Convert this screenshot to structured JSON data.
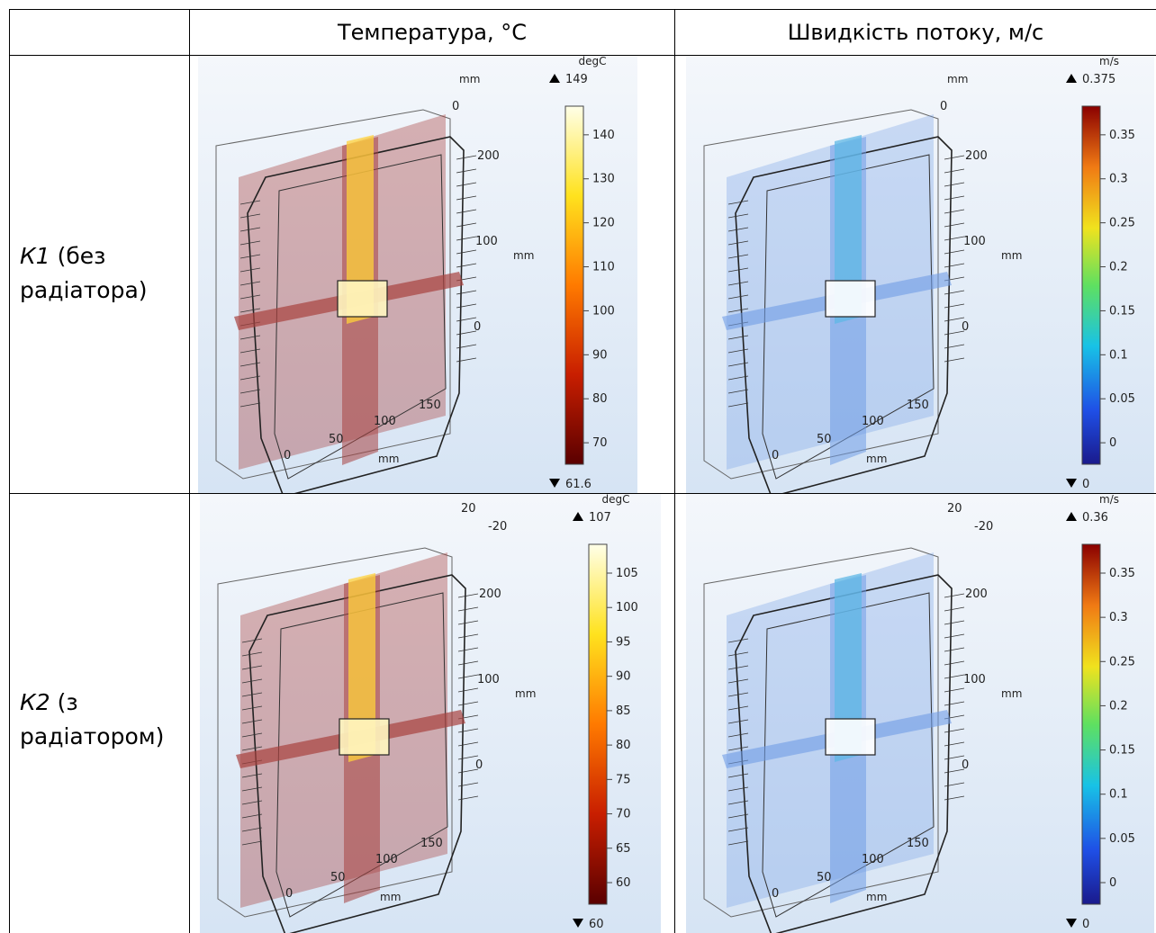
{
  "header": {
    "col1": "Температура, °C",
    "col2": "Швидкість потоку, м/с"
  },
  "rows": [
    {
      "name_italic": "К1",
      "name_rest_line1": " (без",
      "name_line2": "радіатора)"
    },
    {
      "name_italic": "К2",
      "name_rest_line1": " (з",
      "name_line2": "радіатором)"
    }
  ],
  "plots": [
    {
      "unit": "degC",
      "max_label": "149",
      "min_label": "61.6",
      "ticks": [
        "140",
        "130",
        "120",
        "110",
        "100",
        "90",
        "80",
        "70"
      ],
      "colormap": "heat",
      "axis_labels": {
        "top_mm": "mm",
        "top0": "0",
        "z200": "200",
        "z100": "100",
        "zmm": "mm",
        "z0": "0",
        "x150": "150",
        "x100": "100",
        "x50": "50",
        "x0": "0",
        "xmm": "mm"
      }
    },
    {
      "unit": "m/s",
      "max_label": "0.375",
      "min_label": "0",
      "ticks": [
        "0.35",
        "0.3",
        "0.25",
        "0.2",
        "0.15",
        "0.1",
        "0.05",
        "0"
      ],
      "colormap": "rainbow",
      "axis_labels": {
        "top_mm": "mm",
        "top0": "0",
        "z200": "200",
        "z100": "100",
        "zmm": "mm",
        "z0": "0",
        "x150": "150",
        "x100": "100",
        "x50": "50",
        "x0": "0",
        "xmm": "mm"
      }
    },
    {
      "unit": "degC",
      "max_label": "107",
      "min_label": "60",
      "ticks": [
        "105",
        "100",
        "95",
        "90",
        "85",
        "80",
        "75",
        "70",
        "65",
        "60"
      ],
      "colormap": "heat",
      "axis_labels": {
        "top20": "20",
        "topm20": "-20",
        "z200": "200",
        "z100": "100",
        "zmm": "mm",
        "z0": "0",
        "x150": "150",
        "x100": "100",
        "x50": "50",
        "x0": "0",
        "xmm": "mm"
      }
    },
    {
      "unit": "m/s",
      "max_label": "0.36",
      "min_label": "0",
      "ticks": [
        "0.35",
        "0.3",
        "0.25",
        "0.2",
        "0.15",
        "0.1",
        "0.05",
        "0"
      ],
      "colormap": "rainbow",
      "axis_labels": {
        "top20": "20",
        "topm20": "-20",
        "z200": "200",
        "z100": "100",
        "zmm": "mm",
        "z0": "0",
        "x150": "150",
        "x100": "100",
        "x50": "50",
        "x0": "0",
        "xmm": "mm"
      }
    }
  ]
}
